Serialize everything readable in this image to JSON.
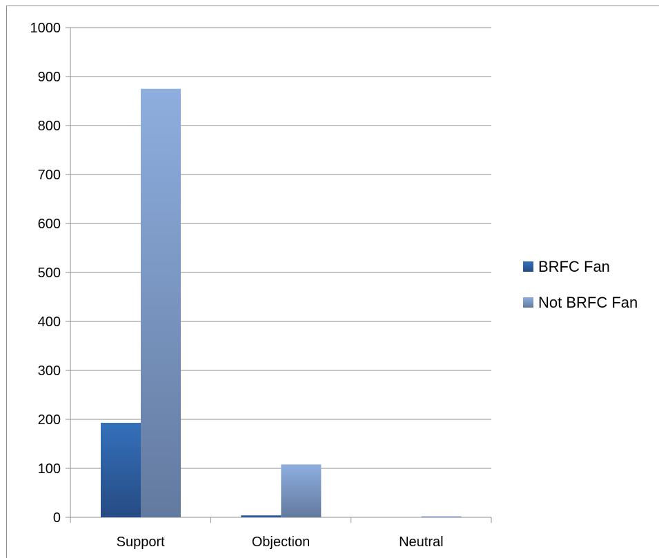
{
  "chart_data": {
    "type": "bar",
    "categories": [
      "Support",
      "Objection",
      "Neutral"
    ],
    "series": [
      {
        "name": "BRFC Fan",
        "values": [
          193,
          4,
          0
        ]
      },
      {
        "name": "Not BRFC Fan",
        "values": [
          875,
          108,
          2
        ]
      }
    ],
    "ylim": [
      0,
      1000
    ],
    "yticks": [
      "0",
      "100",
      "200",
      "300",
      "400",
      "500",
      "600",
      "700",
      "800",
      "900",
      "1000"
    ],
    "grid": true,
    "legend_position": "right",
    "colors": {
      "BRFC Fan": {
        "top": "#3470bb",
        "bottom": "#264b83"
      },
      "Not BRFC Fan": {
        "top": "#8eaedf",
        "bottom": "#637a9f"
      }
    }
  }
}
